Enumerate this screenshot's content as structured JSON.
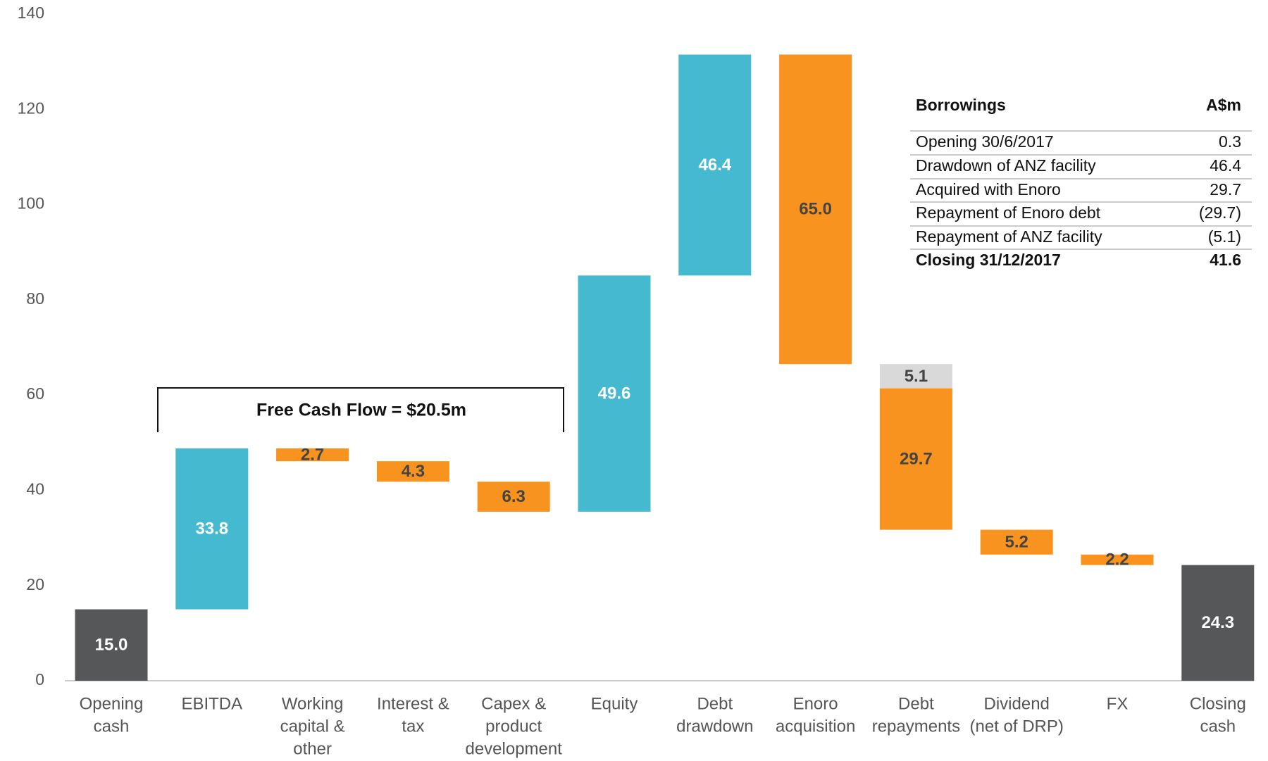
{
  "chart_data": {
    "type": "waterfall",
    "categories": [
      [
        "Opening",
        "cash"
      ],
      [
        "EBITDA"
      ],
      [
        "Working",
        "capital &",
        "other"
      ],
      [
        "Interest &",
        "tax"
      ],
      [
        "Capex &",
        "product",
        "development"
      ],
      [
        "Equity"
      ],
      [
        "Debt",
        "drawdown"
      ],
      [
        "Enoro",
        "acquisition"
      ],
      [
        "Debt",
        "repayments"
      ],
      [
        "Dividend",
        "(net of DRP)"
      ],
      [
        "FX"
      ],
      [
        "Closing",
        "cash"
      ]
    ],
    "values": [
      15.0,
      33.8,
      -2.7,
      -4.3,
      -6.3,
      49.6,
      46.4,
      -65.0,
      [
        -5.1,
        -29.7
      ],
      -5.2,
      -2.2,
      24.3
    ],
    "value_labels": [
      "15.0",
      "33.8",
      "2.7",
      "4.3",
      "6.3",
      "49.6",
      "46.4",
      "65.0",
      [
        "5.1",
        "29.7"
      ],
      "5.2",
      "2.2",
      "24.3"
    ],
    "colors": [
      "#555759",
      "#45b9cf",
      "#f7931e",
      "#f7931e",
      "#f7931e",
      "#45b9cf",
      "#45b9cf",
      "#f7931e",
      [
        "#d9d9d9",
        "#f7931e"
      ],
      "#f7931e",
      "#f7931e",
      "#555759"
    ],
    "total_indices": [
      0,
      11
    ],
    "ylim": [
      0,
      140
    ],
    "yticks": [
      0,
      20,
      40,
      60,
      80,
      100,
      120,
      140
    ],
    "annotation": "Free Cash Flow = $20.5m"
  },
  "table": {
    "header": [
      "Borrowings",
      "A$m"
    ],
    "rows": [
      [
        "Opening 30/6/2017",
        "0.3"
      ],
      [
        "Drawdown of ANZ facility",
        "46.4"
      ],
      [
        "Acquired with Enoro",
        "29.7"
      ],
      [
        "Repayment of Enoro debt",
        "(29.7)"
      ],
      [
        "Repayment of ANZ facility",
        "(5.1)"
      ],
      [
        "Closing 31/12/2017",
        "41.6"
      ]
    ]
  }
}
